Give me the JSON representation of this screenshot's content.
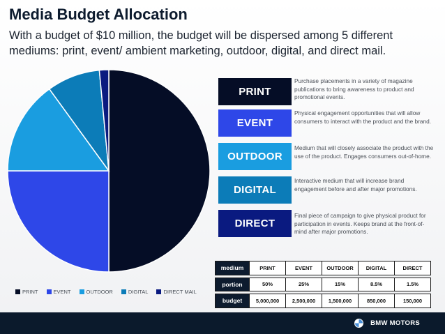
{
  "title": "Media Budget Allocation",
  "subtitle": "With a budget of $10 million, the budget will be dispersed among 5 different mediums: print, event/ ambient marketing, outdoor, digital, and direct mail.",
  "colors": {
    "print": "#050d26",
    "event": "#2e47e8",
    "outdoor": "#1a9de0",
    "digital": "#0c7cb8",
    "direct": "#0a1a80",
    "navy": "#0d1b2e"
  },
  "mediums": [
    {
      "label": "PRINT",
      "description": "Purchase placements in a variety of magazine publications to bring awareness to product and promotional events."
    },
    {
      "label": "EVENT",
      "description": "Physical engagement opportunities that will allow consumers to interact with the product and the brand."
    },
    {
      "label": "OUTDOOR",
      "description": "Medium that will closely associate the product with the use of the product. Engages consumers out-of-home."
    },
    {
      "label": "DIGITAL",
      "description": "Interactive medium that will increase brand engagement before and after major promotions."
    },
    {
      "label": "DIRECT",
      "description": "Final piece of campaign to give physical product for participation in events. Keeps brand at the front-of-mind after major promotions."
    }
  ],
  "table": {
    "header_label": "medium",
    "columns": [
      "PRINT",
      "EVENT",
      "OUTDOOR",
      "DIGITAL",
      "DIRECT"
    ],
    "portion_label": "portion",
    "portions": [
      "50%",
      "25%",
      "15%",
      "8.5%",
      "1.5%"
    ],
    "budget_label": "budget",
    "budgets": [
      "5,000,000",
      "2,500,000",
      "1,500,000",
      "850,000",
      "150,000"
    ]
  },
  "chart_data": {
    "type": "pie",
    "title": "Media Budget Allocation",
    "categories": [
      "PRINT",
      "EVENT",
      "OUTDOOR",
      "DIGITAL",
      "DIRECT MAIL"
    ],
    "values": [
      50,
      25,
      15,
      8.5,
      1.5
    ],
    "colors": [
      "#050d26",
      "#2e47e8",
      "#1a9de0",
      "#0c7cb8",
      "#0a1a80"
    ],
    "legend_position": "bottom"
  },
  "footer": {
    "brand": "BMW MOTORS"
  }
}
